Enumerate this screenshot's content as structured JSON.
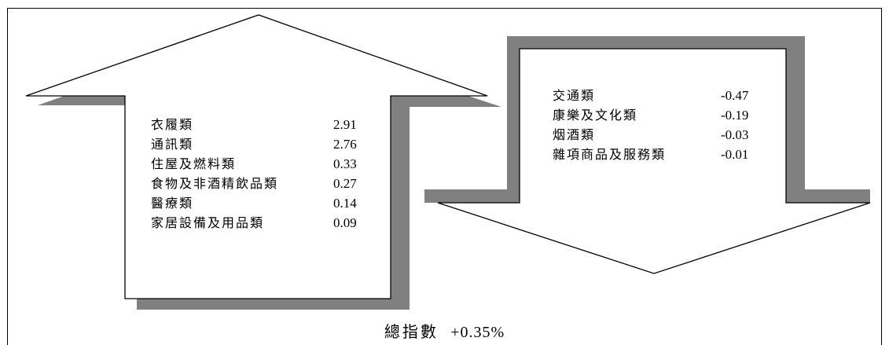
{
  "increase_items": [
    {
      "label": "衣履類",
      "value": "2.91"
    },
    {
      "label": "通訊類",
      "value": "2.76"
    },
    {
      "label": "住屋及燃料類",
      "value": "0.33"
    },
    {
      "label": "食物及非酒精飲品類",
      "value": "0.27"
    },
    {
      "label": "醫療類",
      "value": "0.14"
    },
    {
      "label": "家居設備及用品類",
      "value": "0.09"
    }
  ],
  "decrease_items": [
    {
      "label": "交通類",
      "value": "-0.47"
    },
    {
      "label": "康樂及文化類",
      "value": "-0.19"
    },
    {
      "label": "烟酒類",
      "value": "-0.03"
    },
    {
      "label": "雜項商品及服務類",
      "value": "-0.01"
    }
  ],
  "total": {
    "label": "總指數",
    "value": "+0.35%"
  },
  "colors": {
    "shadow": "#808080",
    "stroke": "#000000",
    "fill": "#ffffff"
  }
}
